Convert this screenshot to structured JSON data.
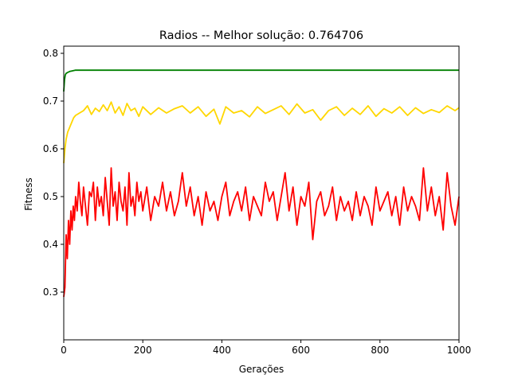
{
  "chart_data": {
    "type": "line",
    "title": "Radios -- Melhor solução: 0.764706",
    "xlabel": "Gerações",
    "ylabel": "Fitness",
    "xlim": [
      0,
      1000
    ],
    "ylim": [
      0.2,
      0.815
    ],
    "xticks": [
      "0",
      "200",
      "400",
      "600",
      "800",
      "1000"
    ],
    "xtick_values": [
      0,
      200,
      400,
      600,
      800,
      1000
    ],
    "yticks": [
      "0.3",
      "0.4",
      "0.5",
      "0.6",
      "0.7",
      "0.8"
    ],
    "ytick_values": [
      0.3,
      0.4,
      0.5,
      0.6,
      0.7,
      0.8
    ],
    "grid": false,
    "legend": "none",
    "series": [
      {
        "color": "#008000",
        "x": [
          0,
          2,
          4,
          6,
          10,
          15,
          20,
          30,
          50,
          100,
          200,
          400,
          600,
          800,
          1000
        ],
        "values": [
          0.72,
          0.745,
          0.755,
          0.758,
          0.76,
          0.762,
          0.763,
          0.7647,
          0.7647,
          0.7647,
          0.7647,
          0.7647,
          0.7647,
          0.7647,
          0.7647
        ]
      },
      {
        "color": "#ffd700",
        "x": [
          0,
          3,
          6,
          10,
          15,
          20,
          25,
          30,
          40,
          50,
          60,
          70,
          80,
          90,
          100,
          110,
          120,
          130,
          140,
          150,
          160,
          170,
          180,
          190,
          200,
          220,
          240,
          260,
          280,
          300,
          320,
          340,
          360,
          380,
          395,
          410,
          430,
          450,
          470,
          490,
          510,
          530,
          550,
          570,
          590,
          610,
          630,
          650,
          670,
          690,
          710,
          730,
          750,
          770,
          790,
          810,
          830,
          850,
          870,
          890,
          910,
          930,
          950,
          970,
          990,
          1000
        ],
        "values": [
          0.57,
          0.6,
          0.62,
          0.635,
          0.645,
          0.655,
          0.665,
          0.67,
          0.675,
          0.68,
          0.69,
          0.672,
          0.685,
          0.678,
          0.692,
          0.68,
          0.698,
          0.675,
          0.688,
          0.67,
          0.695,
          0.68,
          0.685,
          0.668,
          0.688,
          0.672,
          0.686,
          0.675,
          0.684,
          0.69,
          0.675,
          0.688,
          0.668,
          0.683,
          0.652,
          0.688,
          0.675,
          0.68,
          0.667,
          0.688,
          0.674,
          0.682,
          0.69,
          0.672,
          0.694,
          0.675,
          0.682,
          0.66,
          0.68,
          0.688,
          0.67,
          0.685,
          0.672,
          0.69,
          0.668,
          0.684,
          0.675,
          0.688,
          0.67,
          0.686,
          0.674,
          0.682,
          0.676,
          0.69,
          0.68,
          0.686
        ]
      },
      {
        "color": "#ff0000",
        "x": [
          0,
          3,
          6,
          9,
          12,
          15,
          18,
          21,
          24,
          27,
          30,
          34,
          38,
          42,
          46,
          50,
          55,
          60,
          65,
          70,
          75,
          80,
          85,
          90,
          95,
          100,
          105,
          110,
          115,
          120,
          125,
          130,
          135,
          140,
          145,
          150,
          155,
          160,
          165,
          170,
          175,
          180,
          185,
          190,
          195,
          200,
          210,
          220,
          230,
          240,
          250,
          260,
          270,
          280,
          290,
          300,
          310,
          320,
          330,
          340,
          350,
          360,
          370,
          380,
          390,
          400,
          410,
          420,
          430,
          440,
          450,
          460,
          470,
          480,
          490,
          500,
          510,
          520,
          530,
          540,
          550,
          560,
          570,
          580,
          590,
          600,
          610,
          620,
          630,
          640,
          650,
          660,
          670,
          680,
          690,
          700,
          710,
          720,
          730,
          740,
          750,
          760,
          770,
          780,
          790,
          800,
          810,
          820,
          830,
          840,
          850,
          860,
          870,
          880,
          890,
          900,
          910,
          920,
          930,
          940,
          950,
          960,
          970,
          980,
          990,
          1000
        ],
        "values": [
          0.29,
          0.31,
          0.42,
          0.37,
          0.45,
          0.4,
          0.47,
          0.43,
          0.48,
          0.45,
          0.5,
          0.47,
          0.53,
          0.49,
          0.46,
          0.52,
          0.48,
          0.44,
          0.51,
          0.5,
          0.53,
          0.45,
          0.52,
          0.48,
          0.5,
          0.46,
          0.54,
          0.49,
          0.44,
          0.56,
          0.48,
          0.51,
          0.45,
          0.53,
          0.49,
          0.47,
          0.52,
          0.44,
          0.55,
          0.48,
          0.5,
          0.46,
          0.53,
          0.49,
          0.51,
          0.47,
          0.52,
          0.45,
          0.5,
          0.48,
          0.53,
          0.47,
          0.51,
          0.46,
          0.49,
          0.55,
          0.48,
          0.52,
          0.46,
          0.5,
          0.44,
          0.51,
          0.47,
          0.49,
          0.45,
          0.5,
          0.53,
          0.46,
          0.49,
          0.51,
          0.47,
          0.52,
          0.45,
          0.5,
          0.48,
          0.46,
          0.53,
          0.49,
          0.51,
          0.45,
          0.5,
          0.55,
          0.47,
          0.52,
          0.44,
          0.5,
          0.48,
          0.53,
          0.41,
          0.49,
          0.51,
          0.46,
          0.48,
          0.52,
          0.45,
          0.5,
          0.47,
          0.49,
          0.45,
          0.51,
          0.46,
          0.5,
          0.48,
          0.44,
          0.52,
          0.47,
          0.49,
          0.51,
          0.46,
          0.5,
          0.44,
          0.52,
          0.47,
          0.5,
          0.48,
          0.45,
          0.56,
          0.47,
          0.52,
          0.46,
          0.5,
          0.43,
          0.55,
          0.48,
          0.44,
          0.5
        ]
      }
    ]
  }
}
